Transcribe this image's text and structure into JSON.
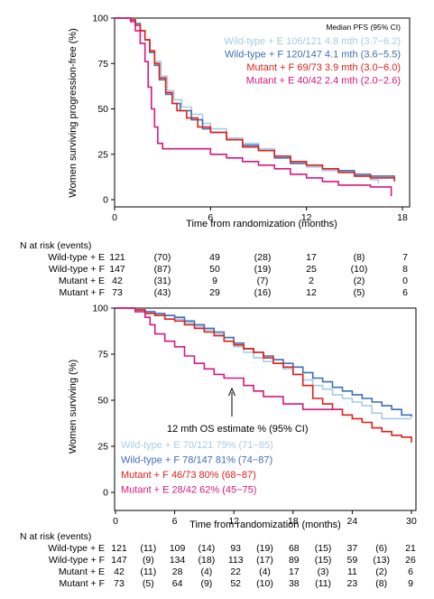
{
  "chart_data": [
    {
      "type": "line",
      "subtype": "kaplan-meier-step",
      "ylabel": "Women surviving progression-free (%)",
      "xlabel": "Time from randomization (months)",
      "xlim": [
        0,
        18
      ],
      "ylim": [
        0,
        100
      ],
      "x_ticks": [
        "0",
        "6",
        "12",
        "18"
      ],
      "y_ticks": [
        "0",
        "25",
        "50",
        "75",
        "100"
      ],
      "legend_title": "Median PFS (95% CI)",
      "legend_position": "top-right",
      "series": [
        {
          "name": "Wild-type + E",
          "label": "Wild-type + E 106/121 4.8 mth (3.7−6.2)",
          "color": "#a9cbe4",
          "points": [
            [
              0,
              100
            ],
            [
              1,
              99
            ],
            [
              1.3,
              96
            ],
            [
              1.6,
              93
            ],
            [
              1.9,
              88
            ],
            [
              2.2,
              82
            ],
            [
              2.5,
              76
            ],
            [
              2.9,
              68
            ],
            [
              3.3,
              60
            ],
            [
              3.7,
              55
            ],
            [
              4.2,
              51
            ],
            [
              4.8,
              47
            ],
            [
              5.5,
              42
            ],
            [
              6,
              39
            ],
            [
              7,
              34
            ],
            [
              8,
              31
            ],
            [
              9,
              28
            ],
            [
              10,
              24
            ],
            [
              11,
              20
            ],
            [
              12,
              18
            ],
            [
              13,
              16
            ],
            [
              14,
              15
            ],
            [
              15,
              13
            ],
            [
              16,
              11
            ],
            [
              16.5,
              9
            ]
          ]
        },
        {
          "name": "Wild-type + F",
          "label": "Wild-type + F 120/147 4.1 mth (3.6−5.5)",
          "color": "#3f6fb5",
          "points": [
            [
              0,
              100
            ],
            [
              1,
              99
            ],
            [
              1.3,
              97
            ],
            [
              1.6,
              93
            ],
            [
              1.9,
              88
            ],
            [
              2.2,
              81
            ],
            [
              2.5,
              74
            ],
            [
              2.8,
              66
            ],
            [
              3.2,
              58
            ],
            [
              3.6,
              53
            ],
            [
              4.1,
              49
            ],
            [
              4.8,
              44
            ],
            [
              5.5,
              39
            ],
            [
              6,
              37
            ],
            [
              7,
              33
            ],
            [
              8,
              30
            ],
            [
              9,
              27
            ],
            [
              10,
              23
            ],
            [
              11,
              20
            ],
            [
              12,
              19
            ],
            [
              13,
              17
            ],
            [
              14,
              16
            ],
            [
              15,
              14
            ],
            [
              16,
              13
            ],
            [
              17.5,
              11
            ]
          ]
        },
        {
          "name": "Mutant + F",
          "label": "Mutant + F 69/73 3.9 mth (3.0−6.0)",
          "color": "#e0201b",
          "points": [
            [
              0,
              100
            ],
            [
              1,
              99
            ],
            [
              1.3,
              96
            ],
            [
              1.6,
              93
            ],
            [
              1.9,
              88
            ],
            [
              2.2,
              82
            ],
            [
              2.5,
              75
            ],
            [
              2.8,
              67
            ],
            [
              3.2,
              59
            ],
            [
              3.6,
              53
            ],
            [
              3.9,
              49
            ],
            [
              4.5,
              45
            ],
            [
              5.2,
              40
            ],
            [
              6,
              37
            ],
            [
              7,
              33
            ],
            [
              8,
              29
            ],
            [
              9,
              27
            ],
            [
              10,
              24
            ],
            [
              11,
              21
            ],
            [
              12,
              19
            ],
            [
              13,
              17
            ],
            [
              14,
              15
            ],
            [
              15,
              13
            ],
            [
              16,
              12
            ],
            [
              17.5,
              10
            ]
          ]
        },
        {
          "name": "Mutant + E",
          "label": "Mutant + E 40/42 2.4 mth (2.0−2.6)",
          "color": "#d8187e",
          "points": [
            [
              0,
              100
            ],
            [
              1,
              98
            ],
            [
              1.3,
              93
            ],
            [
              1.6,
              86
            ],
            [
              1.9,
              76
            ],
            [
              2.1,
              62
            ],
            [
              2.3,
              50
            ],
            [
              2.5,
              40
            ],
            [
              2.7,
              31
            ],
            [
              3,
              28
            ],
            [
              4,
              28
            ],
            [
              5,
              28
            ],
            [
              6,
              25
            ],
            [
              7,
              23
            ],
            [
              8,
              21
            ],
            [
              9,
              19
            ],
            [
              10,
              17
            ],
            [
              11,
              14
            ],
            [
              12,
              12
            ],
            [
              13,
              10
            ],
            [
              14,
              8
            ],
            [
              16,
              7
            ],
            [
              17.3,
              2
            ]
          ]
        }
      ]
    },
    {
      "type": "line",
      "subtype": "kaplan-meier-step",
      "ylabel": "Women surviving (%)",
      "xlabel": "Time from randomization (months)",
      "xlim": [
        0,
        30
      ],
      "ylim": [
        0,
        100
      ],
      "x_ticks": [
        "0",
        "6",
        "12",
        "18",
        "24",
        "30"
      ],
      "y_ticks": [
        "0",
        "25",
        "50",
        "75",
        "100"
      ],
      "annotation": "12 mth OS estimate % (95% CI)",
      "legend_position": "bottom-left",
      "series": [
        {
          "name": "Wild-type + E",
          "label": "Wild-type + E 70/121 79% (71−85)",
          "color": "#a9cbe4",
          "points": [
            [
              0,
              100
            ],
            [
              2,
              99
            ],
            [
              3,
              98
            ],
            [
              4,
              97
            ],
            [
              5,
              96
            ],
            [
              6,
              94
            ],
            [
              7,
              92
            ],
            [
              8,
              90
            ],
            [
              9,
              88
            ],
            [
              10,
              86
            ],
            [
              11,
              82
            ],
            [
              12,
              79
            ],
            [
              13,
              76
            ],
            [
              14,
              73
            ],
            [
              15,
              71
            ],
            [
              16,
              70
            ],
            [
              17,
              67
            ],
            [
              18,
              64
            ],
            [
              19,
              61
            ],
            [
              20,
              58
            ],
            [
              21,
              56
            ],
            [
              22,
              53
            ],
            [
              23,
              51
            ],
            [
              24,
              49
            ],
            [
              25,
              47
            ],
            [
              26,
              43
            ],
            [
              27,
              40
            ],
            [
              30,
              40
            ]
          ]
        },
        {
          "name": "Wild-type + F",
          "label": "Wild-type + F 78/147 81% (74−87)",
          "color": "#3f6fb5",
          "points": [
            [
              0,
              100
            ],
            [
              2,
              99
            ],
            [
              3,
              98
            ],
            [
              4,
              97
            ],
            [
              5,
              96
            ],
            [
              6,
              95
            ],
            [
              7,
              93
            ],
            [
              8,
              91
            ],
            [
              9,
              89
            ],
            [
              10,
              87
            ],
            [
              11,
              84
            ],
            [
              12,
              81
            ],
            [
              13,
              78
            ],
            [
              14,
              76
            ],
            [
              15,
              74
            ],
            [
              16,
              72
            ],
            [
              17,
              70
            ],
            [
              18,
              68
            ],
            [
              19,
              65
            ],
            [
              20,
              62
            ],
            [
              21,
              60
            ],
            [
              22,
              57
            ],
            [
              23,
              55
            ],
            [
              24,
              53
            ],
            [
              25,
              51
            ],
            [
              26,
              49
            ],
            [
              27,
              47
            ],
            [
              28,
              45
            ],
            [
              29,
              42
            ],
            [
              30,
              41
            ]
          ]
        },
        {
          "name": "Mutant + F",
          "label": "Mutant + F 46/73 80% (68−87)",
          "color": "#e0201b",
          "points": [
            [
              0,
              100
            ],
            [
              2,
              99
            ],
            [
              3,
              97
            ],
            [
              4,
              96
            ],
            [
              5,
              94
            ],
            [
              6,
              93
            ],
            [
              7,
              91
            ],
            [
              8,
              89
            ],
            [
              9,
              87
            ],
            [
              10,
              85
            ],
            [
              11,
              82
            ],
            [
              12,
              80
            ],
            [
              13,
              78
            ],
            [
              14,
              76
            ],
            [
              15,
              73
            ],
            [
              16,
              70
            ],
            [
              17,
              68
            ],
            [
              18,
              64
            ],
            [
              19,
              58
            ],
            [
              20,
              51
            ],
            [
              21,
              48
            ],
            [
              22,
              45
            ],
            [
              23,
              42
            ],
            [
              24,
              40
            ],
            [
              25,
              38
            ],
            [
              26,
              35
            ],
            [
              27,
              33
            ],
            [
              28,
              31
            ],
            [
              29,
              30
            ],
            [
              30,
              27
            ]
          ]
        },
        {
          "name": "Mutant + E",
          "label": "Mutant + E 28/42 62% (45−75)",
          "color": "#d8187e",
          "points": [
            [
              0,
              100
            ],
            [
              2,
              98
            ],
            [
              3,
              95
            ],
            [
              3.5,
              91
            ],
            [
              4,
              86
            ],
            [
              5,
              82
            ],
            [
              6,
              79
            ],
            [
              7,
              74
            ],
            [
              8,
              70
            ],
            [
              9,
              67
            ],
            [
              10,
              64
            ],
            [
              11,
              62
            ],
            [
              12,
              62
            ],
            [
              13,
              58
            ],
            [
              14,
              55
            ],
            [
              15,
              52
            ],
            [
              16,
              52
            ],
            [
              17,
              48
            ],
            [
              18,
              48
            ],
            [
              19,
              45
            ],
            [
              20,
              45
            ],
            [
              21,
              45
            ],
            [
              22,
              45
            ],
            [
              23,
              45
            ]
          ]
        }
      ]
    }
  ],
  "risk_tables": [
    {
      "header": "N at risk (events)",
      "columns": [
        "0",
        "",
        "6",
        "",
        "12",
        "",
        "18"
      ],
      "rows": [
        {
          "label": "Wild-type + E",
          "values": [
            "121",
            "(70)",
            "49",
            "(28)",
            "17",
            "(8)",
            "7"
          ]
        },
        {
          "label": "Wild-type + F",
          "values": [
            "147",
            "(87)",
            "50",
            "(19)",
            "25",
            "(10)",
            "8"
          ]
        },
        {
          "label": "Mutant + E",
          "values": [
            "42",
            "(31)",
            "9",
            "(7)",
            "2",
            "(2)",
            "0"
          ]
        },
        {
          "label": "Mutant + F",
          "values": [
            "73",
            "(43)",
            "29",
            "(16)",
            "12",
            "(5)",
            "6"
          ]
        }
      ]
    },
    {
      "header": "N at risk (events)",
      "rows": [
        {
          "label": "Wild-type + E",
          "values": [
            "121",
            "(11)",
            "109",
            "(14)",
            "93",
            "(19)",
            "68",
            "(15)",
            "37",
            "(6)",
            "21"
          ]
        },
        {
          "label": "Wild-type + F",
          "values": [
            "147",
            "(9)",
            "134",
            "(18)",
            "113",
            "(17)",
            "89",
            "(15)",
            "59",
            "(13)",
            "26"
          ]
        },
        {
          "label": "Mutant + E",
          "values": [
            "42",
            "(11)",
            "28",
            "(4)",
            "22",
            "(4)",
            "17",
            "(3)",
            "11",
            "(2)",
            "6"
          ]
        },
        {
          "label": "Mutant + F",
          "values": [
            "73",
            "(5)",
            "64",
            "(9)",
            "52",
            "(10)",
            "38",
            "(11)",
            "23",
            "(8)",
            "9"
          ]
        }
      ]
    }
  ]
}
